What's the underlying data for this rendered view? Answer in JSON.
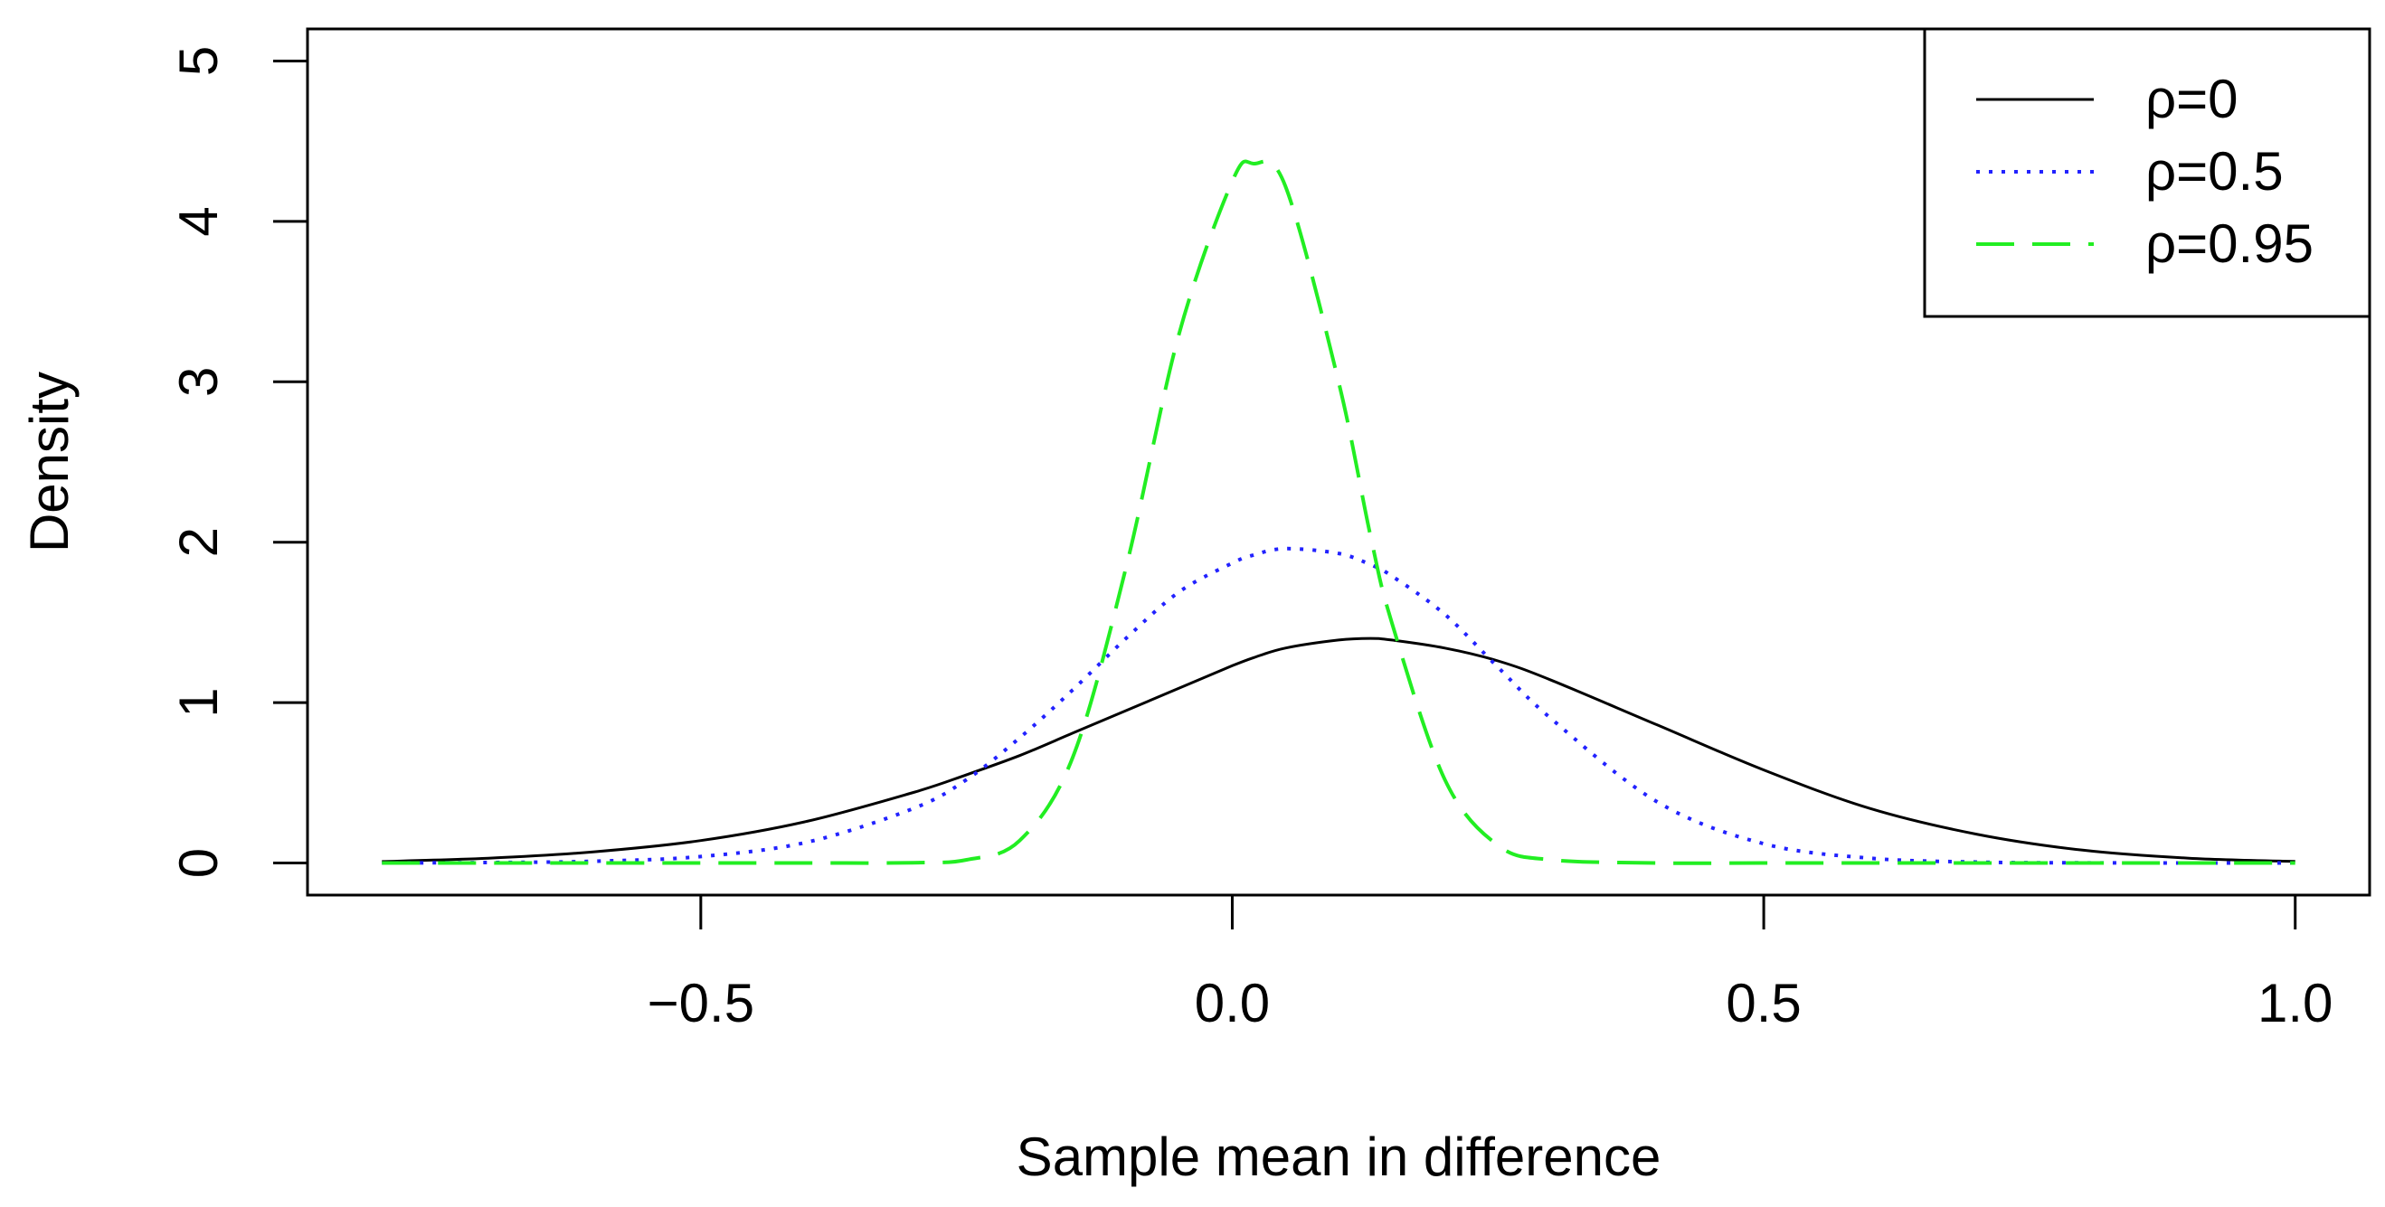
{
  "chart_data": {
    "type": "line",
    "title": "",
    "xlabel": "Sample mean in difference",
    "ylabel": "Density",
    "xlim": [
      -0.87,
      1.07
    ],
    "ylim": [
      -0.2,
      5.2
    ],
    "x_ticks": [
      -0.5,
      0.0,
      0.5,
      1.0
    ],
    "x_tick_labels": [
      "−0.5",
      "0.0",
      "0.5",
      "1.0"
    ],
    "y_ticks": [
      0,
      1,
      2,
      3,
      4,
      5
    ],
    "y_tick_labels": [
      "0",
      "1",
      "2",
      "3",
      "4",
      "5"
    ],
    "grid": false,
    "legend_position": "top-right",
    "x": [
      -0.8,
      -0.7,
      -0.6,
      -0.5,
      -0.4,
      -0.3,
      -0.25,
      -0.2,
      -0.15,
      -0.1,
      -0.05,
      0.0,
      0.02,
      0.05,
      0.1,
      0.13,
      0.15,
      0.2,
      0.25,
      0.3,
      0.4,
      0.5,
      0.6,
      0.7,
      0.8,
      0.9,
      1.0
    ],
    "series": [
      {
        "name": "ρ=0",
        "color": "#000000",
        "dash": "solid",
        "values": [
          0.009,
          0.03,
          0.07,
          0.14,
          0.26,
          0.44,
          0.55,
          0.67,
          0.81,
          0.95,
          1.09,
          1.23,
          1.28,
          1.34,
          1.39,
          1.4,
          1.39,
          1.34,
          1.26,
          1.14,
          0.86,
          0.58,
          0.34,
          0.18,
          0.08,
          0.03,
          0.01
        ]
      },
      {
        "name": "ρ=0.5",
        "color": "#2222ff",
        "dash": "dotted",
        "values": [
          0.0,
          0.003,
          0.011,
          0.04,
          0.13,
          0.34,
          0.52,
          0.78,
          1.08,
          1.4,
          1.69,
          1.87,
          1.92,
          1.96,
          1.93,
          1.86,
          1.79,
          1.55,
          1.22,
          0.9,
          0.38,
          0.12,
          0.03,
          0.006,
          0.001,
          0.0,
          0.0
        ]
      },
      {
        "name": "ρ=0.95",
        "color": "#22ee22",
        "dash": "dashed",
        "values": [
          0.0,
          0.0,
          0.0,
          0.0,
          0.0,
          0.002,
          0.02,
          0.14,
          0.66,
          1.84,
          3.3,
          4.25,
          4.36,
          4.22,
          3.0,
          2.04,
          1.5,
          0.52,
          0.11,
          0.02,
          0.0,
          0.0,
          0.0,
          0.0,
          0.0,
          0.0,
          0.0
        ]
      }
    ]
  }
}
